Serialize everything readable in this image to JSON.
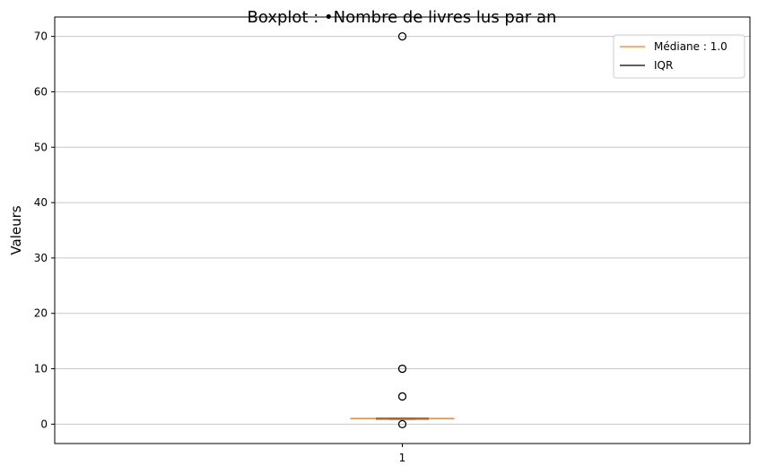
{
  "chart_data": {
    "type": "box",
    "title": "Boxplot : •Nombre de livres lus par an",
    "xlabel": "",
    "ylabel": "Valeurs",
    "categories": [
      "1"
    ],
    "ylim": [
      -3.5,
      73.5
    ],
    "yticks": [
      0,
      10,
      20,
      30,
      40,
      50,
      60,
      70
    ],
    "grid": "y",
    "box": {
      "q1": 0.9,
      "median": 1.0,
      "q3": 1.1,
      "whisker_low": 0.9,
      "whisker_high": 1.1
    },
    "outliers": [
      0,
      5,
      10,
      70
    ],
    "legend": {
      "placement": "top-right",
      "entries": [
        {
          "label": "Médiane : 1.0",
          "color": "#ff7f0e"
        },
        {
          "label": "IQR",
          "color": "#000000"
        }
      ]
    }
  }
}
